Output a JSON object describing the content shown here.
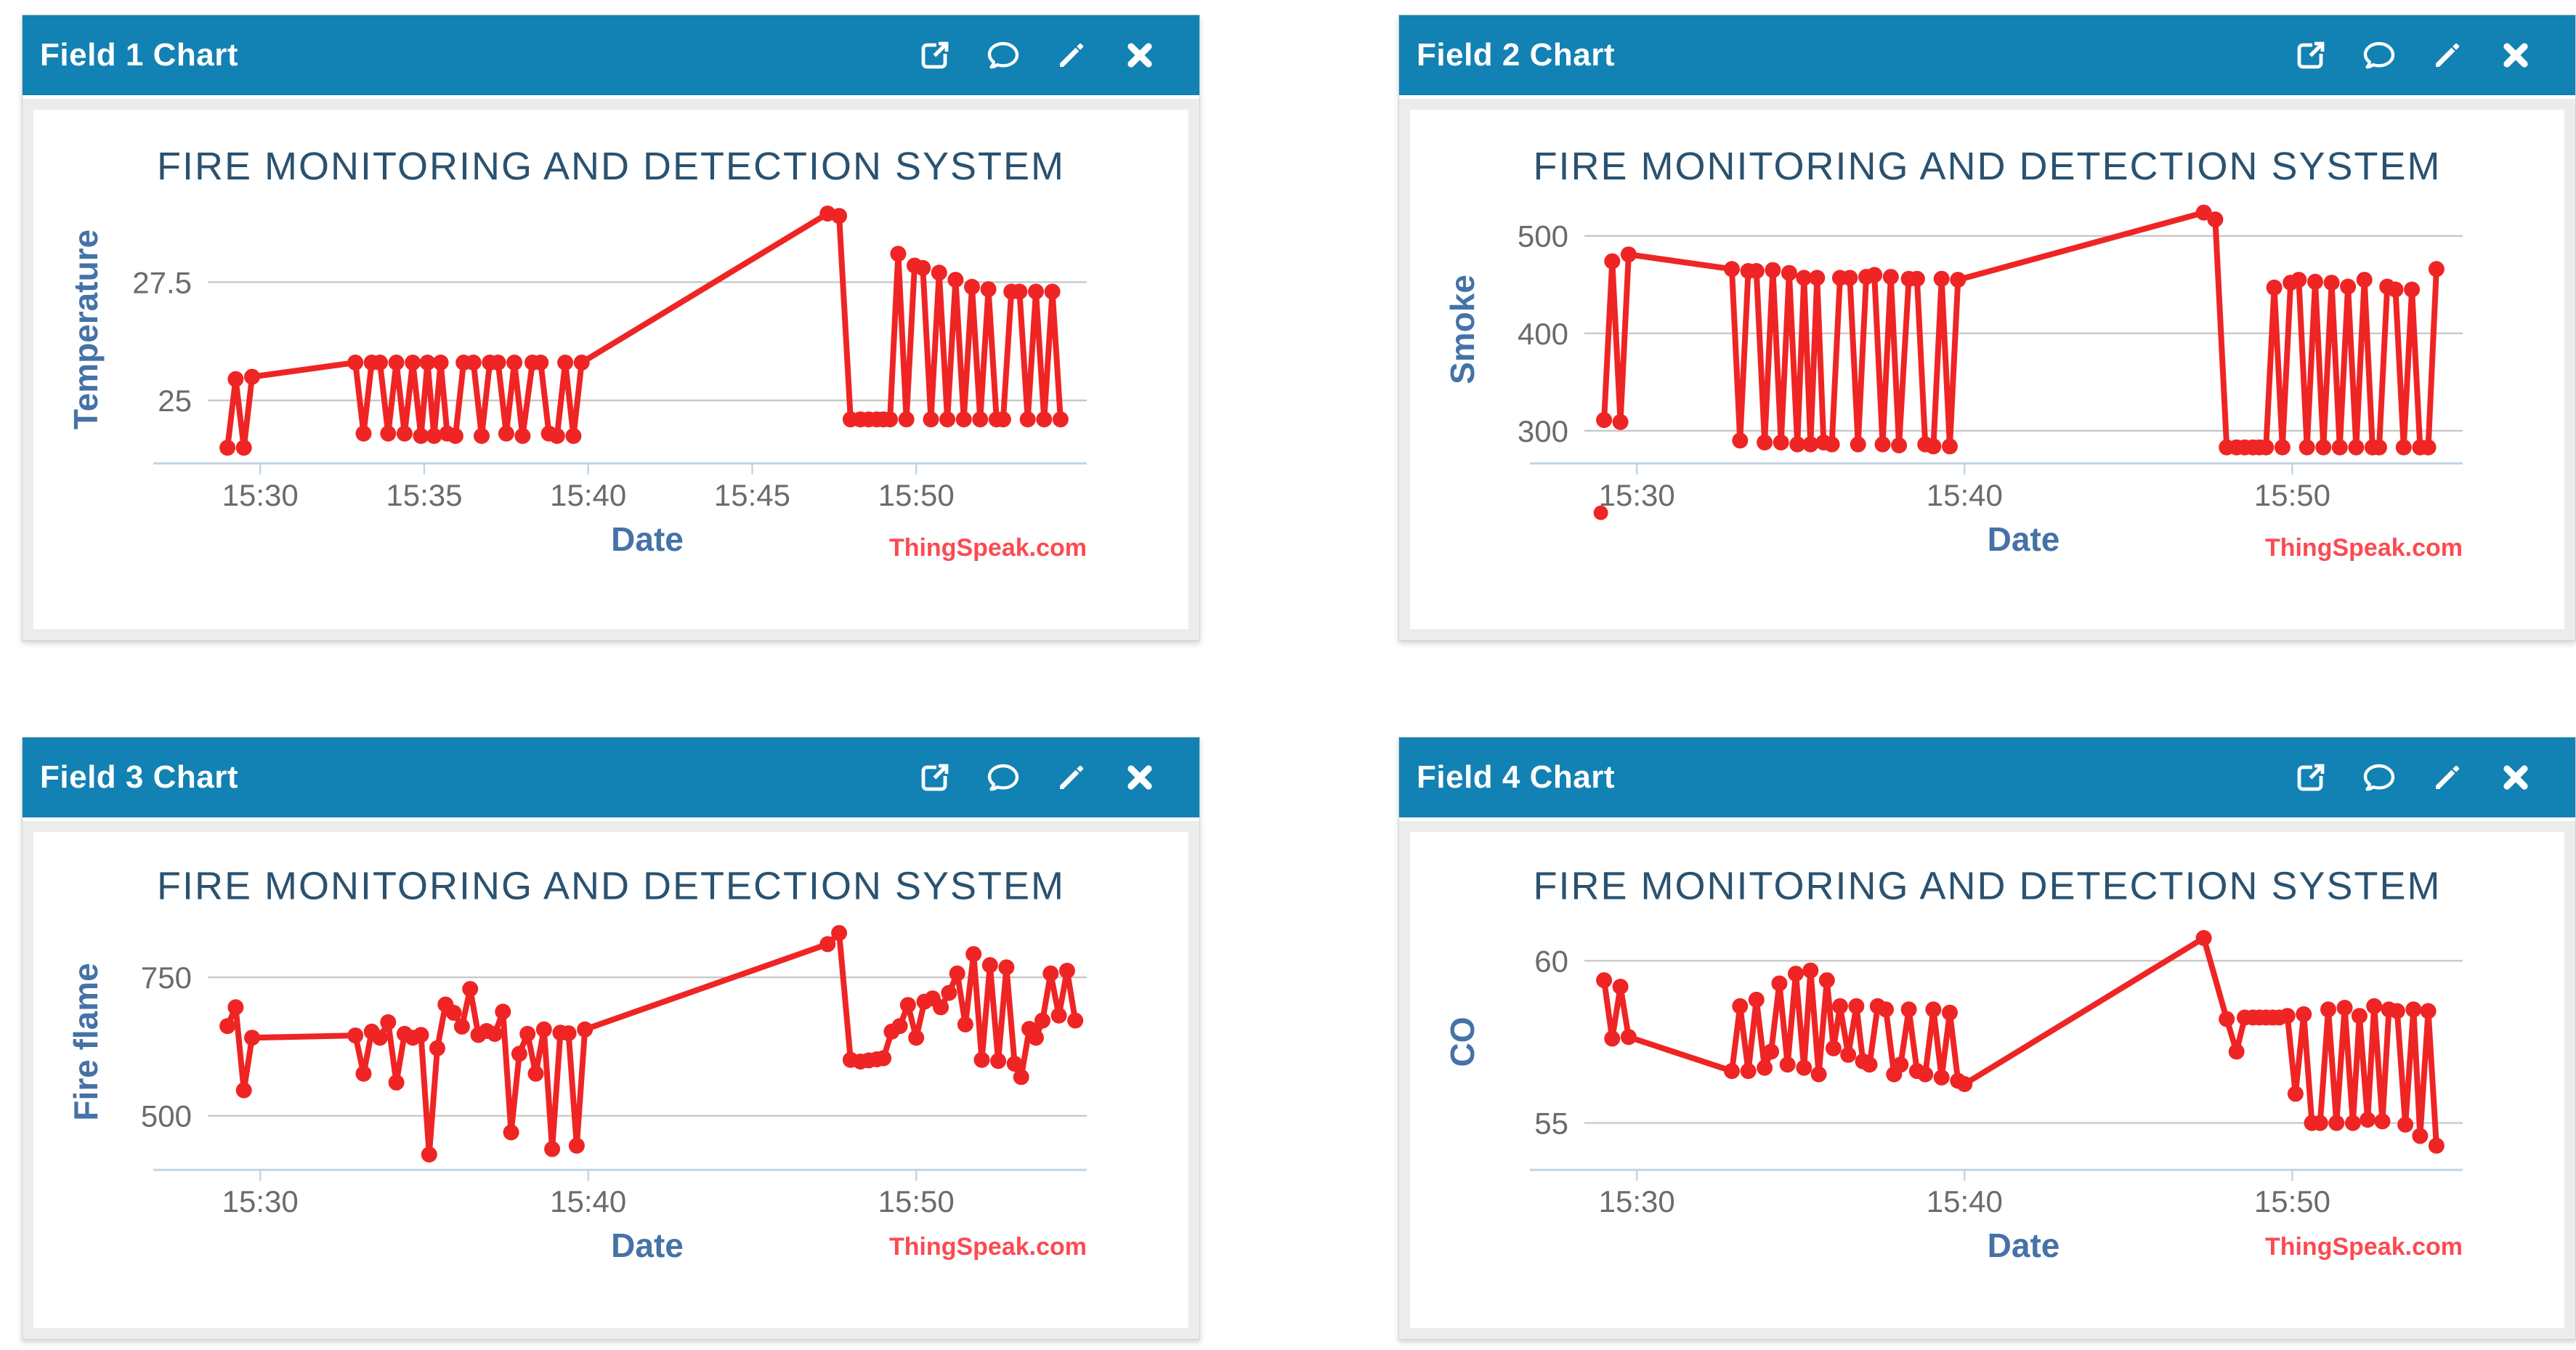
{
  "app": {
    "credits_label": "ThingSpeak.com",
    "header_icon_names": [
      "open-external",
      "comment",
      "edit-pencil",
      "close"
    ]
  },
  "colors": {
    "header_bg": "#1281b3",
    "header_text": "#ffffff",
    "series_red": "#ee2524",
    "chart_title": "#2a5270",
    "axis_title_blue": "#4572a7",
    "tick_label_gray": "#6b6b6b",
    "gridline": "#c9c9c9",
    "axis_line": "#c0d4e4",
    "credits_red": "#fb4a51",
    "panel_frame": "#ececec",
    "page_bg": "#ffffff"
  },
  "panels": [
    {
      "header": "Field 1 Chart"
    },
    {
      "header": "Field 2 Chart"
    },
    {
      "header": "Field 3 Chart"
    },
    {
      "header": "Field 4 Chart"
    }
  ],
  "chart_data": [
    {
      "type": "line",
      "field": "Field 1",
      "title": "FIRE MONITORING AND DETECTION SYSTEM",
      "xlabel": "Date",
      "ylabel": "Temperature",
      "x_unit": "minutes after 15:00",
      "legend": "none",
      "grid": "horizontal",
      "xlim": [
        28.4,
        55.2
      ],
      "ylim": [
        23.7,
        29.3
      ],
      "xticks": [
        {
          "v": 30,
          "label": "15:30"
        },
        {
          "v": 35,
          "label": "15:35"
        },
        {
          "v": 40,
          "label": "15:40"
        },
        {
          "v": 45,
          "label": "15:45"
        },
        {
          "v": 50,
          "label": "15:50"
        }
      ],
      "yticks": [
        {
          "v": 25,
          "label": "25"
        },
        {
          "v": 27.5,
          "label": "27.5"
        }
      ],
      "points": [
        [
          29.0,
          24.0
        ],
        [
          29.25,
          25.45
        ],
        [
          29.5,
          24.0
        ],
        [
          29.75,
          25.5
        ],
        [
          32.9,
          25.8
        ],
        [
          33.15,
          24.3
        ],
        [
          33.4,
          25.8
        ],
        [
          33.65,
          25.8
        ],
        [
          33.9,
          24.3
        ],
        [
          34.15,
          25.8
        ],
        [
          34.4,
          24.3
        ],
        [
          34.65,
          25.8
        ],
        [
          34.9,
          24.25
        ],
        [
          35.1,
          25.8
        ],
        [
          35.3,
          24.25
        ],
        [
          35.5,
          25.8
        ],
        [
          35.7,
          24.3
        ],
        [
          35.95,
          24.25
        ],
        [
          36.2,
          25.8
        ],
        [
          36.5,
          25.8
        ],
        [
          36.75,
          24.25
        ],
        [
          37.0,
          25.8
        ],
        [
          37.25,
          25.8
        ],
        [
          37.5,
          24.3
        ],
        [
          37.75,
          25.8
        ],
        [
          38.0,
          24.25
        ],
        [
          38.3,
          25.8
        ],
        [
          38.55,
          25.8
        ],
        [
          38.8,
          24.3
        ],
        [
          39.05,
          24.25
        ],
        [
          39.3,
          25.8
        ],
        [
          39.55,
          24.25
        ],
        [
          39.8,
          25.8
        ],
        [
          47.3,
          28.95
        ],
        [
          47.65,
          28.9
        ],
        [
          48.0,
          24.6
        ],
        [
          48.3,
          24.6
        ],
        [
          48.55,
          24.6
        ],
        [
          48.8,
          24.6
        ],
        [
          49.0,
          24.6
        ],
        [
          49.2,
          24.6
        ],
        [
          49.45,
          28.1
        ],
        [
          49.7,
          24.6
        ],
        [
          49.95,
          27.85
        ],
        [
          50.2,
          27.8
        ],
        [
          50.45,
          24.6
        ],
        [
          50.7,
          27.7
        ],
        [
          50.95,
          24.6
        ],
        [
          51.2,
          27.55
        ],
        [
          51.45,
          24.6
        ],
        [
          51.7,
          27.4
        ],
        [
          51.95,
          24.6
        ],
        [
          52.2,
          27.35
        ],
        [
          52.45,
          24.6
        ],
        [
          52.65,
          24.6
        ],
        [
          52.9,
          27.3
        ],
        [
          53.15,
          27.3
        ],
        [
          53.4,
          24.6
        ],
        [
          53.65,
          27.3
        ],
        [
          53.9,
          24.6
        ],
        [
          54.15,
          27.3
        ],
        [
          54.4,
          24.6
        ]
      ]
    },
    {
      "type": "line",
      "field": "Field 2",
      "title": "FIRE MONITORING AND DETECTION SYSTEM",
      "xlabel": "Date",
      "ylabel": "Smoke",
      "x_unit": "minutes after 15:00",
      "legend": "none",
      "grid": "horizontal",
      "xlim": [
        28.4,
        55.2
      ],
      "ylim": [
        268,
        540
      ],
      "xticks": [
        {
          "v": 30,
          "label": "15:30"
        },
        {
          "v": 40,
          "label": "15:40"
        },
        {
          "v": 50,
          "label": "15:50"
        }
      ],
      "yticks": [
        {
          "v": 300,
          "label": "300"
        },
        {
          "v": 400,
          "label": "400"
        },
        {
          "v": 500,
          "label": "500"
        }
      ],
      "points": [
        [
          29.0,
          311
        ],
        [
          29.25,
          474
        ],
        [
          29.5,
          309
        ],
        [
          29.75,
          481
        ],
        [
          32.9,
          466
        ],
        [
          33.15,
          290
        ],
        [
          33.4,
          464
        ],
        [
          33.65,
          464
        ],
        [
          33.9,
          288
        ],
        [
          34.15,
          465
        ],
        [
          34.4,
          288
        ],
        [
          34.65,
          462
        ],
        [
          34.9,
          286
        ],
        [
          35.1,
          457
        ],
        [
          35.3,
          286
        ],
        [
          35.5,
          457
        ],
        [
          35.7,
          288
        ],
        [
          35.95,
          286
        ],
        [
          36.2,
          457
        ],
        [
          36.5,
          457
        ],
        [
          36.75,
          286
        ],
        [
          37.0,
          458
        ],
        [
          37.25,
          460
        ],
        [
          37.5,
          286
        ],
        [
          37.75,
          458
        ],
        [
          38.0,
          285
        ],
        [
          38.3,
          456
        ],
        [
          38.55,
          456
        ],
        [
          38.8,
          286
        ],
        [
          39.05,
          284
        ],
        [
          39.3,
          456
        ],
        [
          39.55,
          284
        ],
        [
          39.8,
          455
        ],
        [
          47.3,
          524
        ],
        [
          47.65,
          517
        ],
        [
          48.0,
          283
        ],
        [
          48.3,
          283
        ],
        [
          48.55,
          283
        ],
        [
          48.8,
          283
        ],
        [
          49.0,
          283
        ],
        [
          49.2,
          283
        ],
        [
          49.45,
          447
        ],
        [
          49.7,
          283
        ],
        [
          49.95,
          452
        ],
        [
          50.2,
          455
        ],
        [
          50.45,
          283
        ],
        [
          50.7,
          453
        ],
        [
          50.95,
          283
        ],
        [
          51.2,
          452
        ],
        [
          51.45,
          283
        ],
        [
          51.7,
          448
        ],
        [
          51.95,
          283
        ],
        [
          52.2,
          455
        ],
        [
          52.45,
          283
        ],
        [
          52.65,
          283
        ],
        [
          52.9,
          448
        ],
        [
          53.15,
          445
        ],
        [
          53.4,
          283
        ],
        [
          53.65,
          445
        ],
        [
          53.9,
          283
        ],
        [
          54.15,
          283
        ],
        [
          54.4,
          466
        ]
      ],
      "detached_point": {
        "x": 28.9,
        "note": "isolated dot rendered below the x-axis near 15:30"
      }
    },
    {
      "type": "line",
      "field": "Field 3",
      "title": "FIRE MONITORING AND DETECTION SYSTEM",
      "xlabel": "Date",
      "ylabel": "Fire flame",
      "x_unit": "minutes after 15:00",
      "legend": "none",
      "grid": "horizontal",
      "xlim": [
        28.4,
        55.2
      ],
      "ylim": [
        405,
        862
      ],
      "xticks": [
        {
          "v": 30,
          "label": "15:30"
        },
        {
          "v": 40,
          "label": "15:40"
        },
        {
          "v": 50,
          "label": "15:50"
        }
      ],
      "yticks": [
        {
          "v": 500,
          "label": "500"
        },
        {
          "v": 750,
          "label": "750"
        }
      ],
      "points": [
        [
          29.0,
          662
        ],
        [
          29.25,
          696
        ],
        [
          29.5,
          546
        ],
        [
          29.75,
          641
        ],
        [
          32.9,
          645
        ],
        [
          33.15,
          576
        ],
        [
          33.4,
          652
        ],
        [
          33.65,
          641
        ],
        [
          33.9,
          669
        ],
        [
          34.15,
          560
        ],
        [
          34.4,
          648
        ],
        [
          34.65,
          641
        ],
        [
          34.9,
          646
        ],
        [
          35.15,
          430
        ],
        [
          35.4,
          622
        ],
        [
          35.65,
          701
        ],
        [
          35.9,
          686
        ],
        [
          36.15,
          661
        ],
        [
          36.4,
          729
        ],
        [
          36.65,
          646
        ],
        [
          36.9,
          653
        ],
        [
          37.15,
          648
        ],
        [
          37.4,
          688
        ],
        [
          37.65,
          470
        ],
        [
          37.9,
          612
        ],
        [
          38.15,
          648
        ],
        [
          38.4,
          576
        ],
        [
          38.65,
          656
        ],
        [
          38.9,
          440
        ],
        [
          39.15,
          650
        ],
        [
          39.4,
          649
        ],
        [
          39.65,
          446
        ],
        [
          39.9,
          656
        ],
        [
          47.3,
          810
        ],
        [
          47.65,
          830
        ],
        [
          48.0,
          601
        ],
        [
          48.3,
          598
        ],
        [
          48.55,
          600
        ],
        [
          48.8,
          602
        ],
        [
          49.0,
          604
        ],
        [
          49.25,
          652
        ],
        [
          49.5,
          662
        ],
        [
          49.75,
          700
        ],
        [
          50.0,
          641
        ],
        [
          50.25,
          706
        ],
        [
          50.5,
          712
        ],
        [
          50.75,
          696
        ],
        [
          51.0,
          722
        ],
        [
          51.25,
          757
        ],
        [
          51.5,
          665
        ],
        [
          51.75,
          792
        ],
        [
          52.0,
          601
        ],
        [
          52.25,
          772
        ],
        [
          52.5,
          599
        ],
        [
          52.75,
          768
        ],
        [
          53.0,
          594
        ],
        [
          53.2,
          570
        ],
        [
          53.45,
          657
        ],
        [
          53.65,
          641
        ],
        [
          53.85,
          672
        ],
        [
          54.1,
          757
        ],
        [
          54.35,
          681
        ],
        [
          54.6,
          762
        ],
        [
          54.85,
          672
        ]
      ]
    },
    {
      "type": "line",
      "field": "Field 4",
      "title": "FIRE MONITORING AND DETECTION SYSTEM",
      "xlabel": "Date",
      "ylabel": "CO",
      "x_unit": "minutes after 15:00",
      "legend": "none",
      "grid": "horizontal",
      "xlim": [
        28.4,
        55.2
      ],
      "ylim": [
        53.6,
        61.4
      ],
      "xticks": [
        {
          "v": 30,
          "label": "15:30"
        },
        {
          "v": 40,
          "label": "15:40"
        },
        {
          "v": 50,
          "label": "15:50"
        }
      ],
      "yticks": [
        {
          "v": 55,
          "label": "55"
        },
        {
          "v": 60,
          "label": "60"
        }
      ],
      "points": [
        [
          29.0,
          59.4
        ],
        [
          29.25,
          57.6
        ],
        [
          29.5,
          59.2
        ],
        [
          29.75,
          57.65
        ],
        [
          32.9,
          56.6
        ],
        [
          33.15,
          58.6
        ],
        [
          33.4,
          56.6
        ],
        [
          33.65,
          58.8
        ],
        [
          33.9,
          56.7
        ],
        [
          34.1,
          57.2
        ],
        [
          34.35,
          59.3
        ],
        [
          34.6,
          56.8
        ],
        [
          34.85,
          59.6
        ],
        [
          35.1,
          56.7
        ],
        [
          35.3,
          59.7
        ],
        [
          35.55,
          56.5
        ],
        [
          35.8,
          59.4
        ],
        [
          36.0,
          57.3
        ],
        [
          36.2,
          58.6
        ],
        [
          36.45,
          57.1
        ],
        [
          36.7,
          58.6
        ],
        [
          36.9,
          56.9
        ],
        [
          37.1,
          56.8
        ],
        [
          37.35,
          58.6
        ],
        [
          37.6,
          58.5
        ],
        [
          37.85,
          56.5
        ],
        [
          38.05,
          56.8
        ],
        [
          38.3,
          58.5
        ],
        [
          38.55,
          56.6
        ],
        [
          38.8,
          56.5
        ],
        [
          39.05,
          58.5
        ],
        [
          39.3,
          56.4
        ],
        [
          39.55,
          58.4
        ],
        [
          39.8,
          56.3
        ],
        [
          40.0,
          56.2
        ],
        [
          47.3,
          60.7
        ],
        [
          48.0,
          58.2
        ],
        [
          48.3,
          57.2
        ],
        [
          48.55,
          58.25
        ],
        [
          48.8,
          58.25
        ],
        [
          49.0,
          58.25
        ],
        [
          49.2,
          58.25
        ],
        [
          49.4,
          58.25
        ],
        [
          49.6,
          58.25
        ],
        [
          49.85,
          58.3
        ],
        [
          50.1,
          55.9
        ],
        [
          50.35,
          58.35
        ],
        [
          50.6,
          55.0
        ],
        [
          50.85,
          55.0
        ],
        [
          51.1,
          58.5
        ],
        [
          51.35,
          55.0
        ],
        [
          51.6,
          58.55
        ],
        [
          51.85,
          55.0
        ],
        [
          52.05,
          58.3
        ],
        [
          52.3,
          55.1
        ],
        [
          52.5,
          58.6
        ],
        [
          52.75,
          55.05
        ],
        [
          52.95,
          58.5
        ],
        [
          53.2,
          58.45
        ],
        [
          53.45,
          54.95
        ],
        [
          53.7,
          58.5
        ],
        [
          53.9,
          54.6
        ],
        [
          54.15,
          58.45
        ],
        [
          54.4,
          54.3
        ]
      ]
    }
  ]
}
